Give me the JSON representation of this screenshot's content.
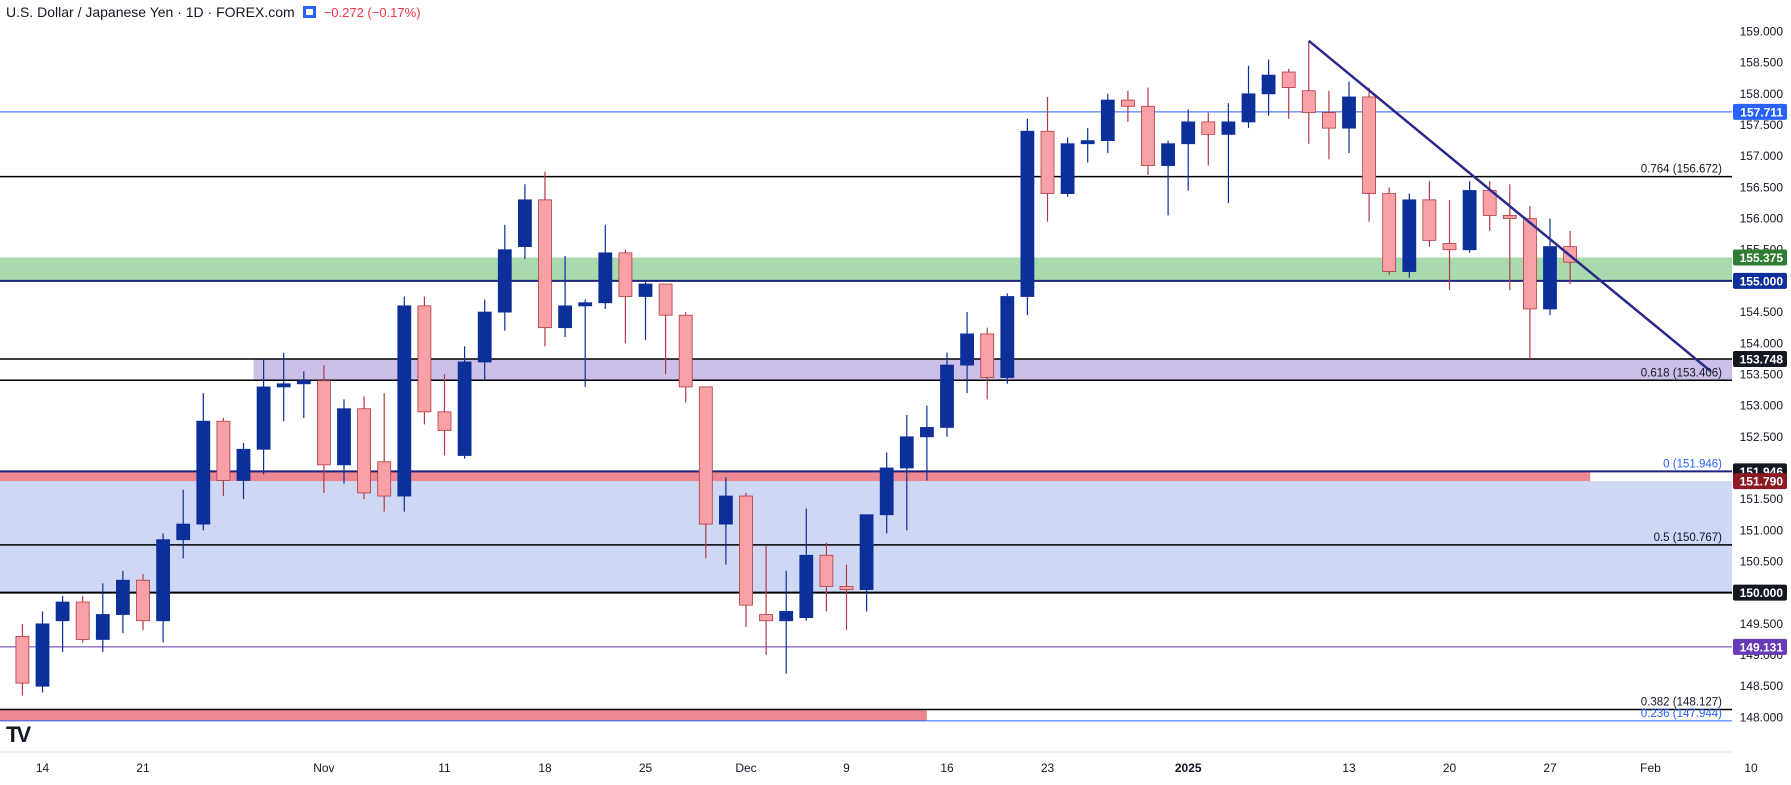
{
  "header": {
    "title": "U.S. Dollar / Japanese Yen · 1D · FOREX.com",
    "change": "−0.272 (−0.17%)",
    "change_color": "#f23645",
    "flag_icon": "blue-flag-icon"
  },
  "logo": {
    "text": "TV",
    "icon": "tradingview-logo-icon"
  },
  "colors": {
    "up_body": "#0d2f9a",
    "down_body": "#f7a1a6",
    "down_border": "#b23a43",
    "trendline": "#2a2a8c",
    "zone_green": "#9fd6a4",
    "zone_purple": "#c6b8e6",
    "zone_blue": "#c9d3f3",
    "zone_red": "#ec7b86"
  },
  "chart_data": {
    "type": "candlestick",
    "symbol": "USD/JPY",
    "timeframe": "1D",
    "ylim": [
      147.83,
      159.12
    ],
    "price_ticks": [
      "159.000",
      "158.500",
      "158.000",
      "157.500",
      "157.000",
      "156.500",
      "156.000",
      "155.500",
      "155.000",
      "154.500",
      "154.000",
      "153.500",
      "153.000",
      "152.500",
      "152.000",
      "151.500",
      "151.000",
      "150.500",
      "150.000",
      "149.500",
      "149.000",
      "148.500",
      "148.000"
    ],
    "time_ticks": [
      {
        "label": "14",
        "date": "2024-10-14"
      },
      {
        "label": "21",
        "date": "2024-10-21"
      },
      {
        "label": "Nov",
        "date": "2024-11-01"
      },
      {
        "label": "11",
        "date": "2024-11-11"
      },
      {
        "label": "18",
        "date": "2024-11-18"
      },
      {
        "label": "25",
        "date": "2024-11-25"
      },
      {
        "label": "Dec",
        "date": "2024-12-02"
      },
      {
        "label": "9",
        "date": "2024-12-09"
      },
      {
        "label": "16",
        "date": "2024-12-16"
      },
      {
        "label": "23",
        "date": "2024-12-23"
      },
      {
        "label": "2025",
        "date": "2025-01-01"
      },
      {
        "label": "13",
        "date": "2025-01-13"
      },
      {
        "label": "20",
        "date": "2025-01-20"
      },
      {
        "label": "27",
        "date": "2025-01-27"
      },
      {
        "label": "Feb",
        "date": "2025-02-03"
      },
      {
        "label": "10",
        "date": "2025-02-10"
      }
    ],
    "candles": [
      {
        "date": "2024-10-11",
        "open": 149.3,
        "high": 149.5,
        "low": 148.35,
        "close": 148.55
      },
      {
        "date": "2024-10-14",
        "open": 148.5,
        "high": 149.7,
        "low": 148.4,
        "close": 149.5
      },
      {
        "date": "2024-10-15",
        "open": 149.55,
        "high": 149.95,
        "low": 149.05,
        "close": 149.85
      },
      {
        "date": "2024-10-16",
        "open": 149.85,
        "high": 149.95,
        "low": 149.2,
        "close": 149.25
      },
      {
        "date": "2024-10-17",
        "open": 149.25,
        "high": 150.15,
        "low": 149.05,
        "close": 149.65
      },
      {
        "date": "2024-10-18",
        "open": 149.65,
        "high": 150.35,
        "low": 149.35,
        "close": 150.2
      },
      {
        "date": "2024-10-21",
        "open": 150.2,
        "high": 150.3,
        "low": 149.4,
        "close": 149.55
      },
      {
        "date": "2024-10-22",
        "open": 149.55,
        "high": 150.95,
        "low": 149.2,
        "close": 150.85
      },
      {
        "date": "2024-10-23",
        "open": 150.85,
        "high": 151.65,
        "low": 150.55,
        "close": 151.1
      },
      {
        "date": "2024-10-24",
        "open": 151.1,
        "high": 153.2,
        "low": 151.0,
        "close": 152.75
      },
      {
        "date": "2024-10-25",
        "open": 152.75,
        "high": 152.8,
        "low": 151.55,
        "close": 151.8
      },
      {
        "date": "2024-10-28",
        "open": 151.8,
        "high": 152.4,
        "low": 151.5,
        "close": 152.3
      },
      {
        "date": "2024-10-29",
        "open": 152.3,
        "high": 153.75,
        "low": 151.9,
        "close": 153.3
      },
      {
        "date": "2024-10-30",
        "open": 153.3,
        "high": 153.85,
        "low": 152.75,
        "close": 153.35
      },
      {
        "date": "2024-10-31",
        "open": 153.35,
        "high": 153.55,
        "low": 152.8,
        "close": 153.4
      },
      {
        "date": "2024-11-01",
        "open": 153.4,
        "high": 153.65,
        "low": 151.6,
        "close": 152.05
      },
      {
        "date": "2024-11-04",
        "open": 152.05,
        "high": 153.1,
        "low": 151.75,
        "close": 152.95
      },
      {
        "date": "2024-11-05",
        "open": 152.95,
        "high": 153.15,
        "low": 151.5,
        "close": 151.6
      },
      {
        "date": "2024-11-06",
        "open": 152.1,
        "high": 153.2,
        "low": 151.3,
        "close": 151.55
      },
      {
        "date": "2024-11-07",
        "open": 151.55,
        "high": 154.75,
        "low": 151.3,
        "close": 154.6
      },
      {
        "date": "2024-11-08",
        "open": 154.6,
        "high": 154.75,
        "low": 152.7,
        "close": 152.9
      },
      {
        "date": "2024-11-11",
        "open": 152.9,
        "high": 153.5,
        "low": 152.2,
        "close": 152.6
      },
      {
        "date": "2024-11-12",
        "open": 152.2,
        "high": 153.95,
        "low": 152.15,
        "close": 153.7
      },
      {
        "date": "2024-11-13",
        "open": 153.7,
        "high": 154.7,
        "low": 153.4,
        "close": 154.5
      },
      {
        "date": "2024-11-14",
        "open": 154.5,
        "high": 155.9,
        "low": 154.2,
        "close": 155.5
      },
      {
        "date": "2024-11-15",
        "open": 155.55,
        "high": 156.55,
        "low": 155.35,
        "close": 156.3
      },
      {
        "date": "2024-11-18",
        "open": 156.3,
        "high": 156.75,
        "low": 153.95,
        "close": 154.25
      },
      {
        "date": "2024-11-19",
        "open": 154.25,
        "high": 155.4,
        "low": 154.1,
        "close": 154.6
      },
      {
        "date": "2024-11-20",
        "open": 154.6,
        "high": 154.7,
        "low": 153.3,
        "close": 154.65
      },
      {
        "date": "2024-11-21",
        "open": 154.65,
        "high": 155.9,
        "low": 154.55,
        "close": 155.45
      },
      {
        "date": "2024-11-22",
        "open": 155.45,
        "high": 155.5,
        "low": 154.0,
        "close": 154.75
      },
      {
        "date": "2024-11-25",
        "open": 154.75,
        "high": 155.0,
        "low": 154.05,
        "close": 154.95
      },
      {
        "date": "2024-11-26",
        "open": 154.95,
        "high": 154.95,
        "low": 153.5,
        "close": 154.45
      },
      {
        "date": "2024-11-27",
        "open": 154.45,
        "high": 154.5,
        "low": 153.05,
        "close": 153.3
      },
      {
        "date": "2024-11-28",
        "open": 153.3,
        "high": 153.25,
        "low": 150.55,
        "close": 151.1
      },
      {
        "date": "2024-11-29",
        "open": 151.1,
        "high": 151.85,
        "low": 150.45,
        "close": 151.55
      },
      {
        "date": "2024-12-02",
        "open": 151.55,
        "high": 151.6,
        "low": 149.45,
        "close": 149.8
      },
      {
        "date": "2024-12-03",
        "open": 149.65,
        "high": 150.75,
        "low": 149.0,
        "close": 149.55
      },
      {
        "date": "2024-12-04",
        "open": 149.55,
        "high": 150.35,
        "low": 148.7,
        "close": 149.7
      },
      {
        "date": "2024-12-05",
        "open": 149.6,
        "high": 151.35,
        "low": 149.55,
        "close": 150.6
      },
      {
        "date": "2024-12-06",
        "open": 150.6,
        "high": 150.8,
        "low": 149.7,
        "close": 150.1
      },
      {
        "date": "2024-12-09",
        "open": 150.1,
        "high": 150.45,
        "low": 149.4,
        "close": 150.05
      },
      {
        "date": "2024-12-10",
        "open": 150.05,
        "high": 151.25,
        "low": 149.7,
        "close": 151.25
      },
      {
        "date": "2024-12-11",
        "open": 151.25,
        "high": 152.25,
        "low": 150.95,
        "close": 152.0
      },
      {
        "date": "2024-12-12",
        "open": 152.0,
        "high": 152.85,
        "low": 151.0,
        "close": 152.5
      },
      {
        "date": "2024-12-13",
        "open": 152.5,
        "high": 153.0,
        "low": 151.8,
        "close": 152.65
      },
      {
        "date": "2024-12-16",
        "open": 152.65,
        "high": 153.85,
        "low": 152.5,
        "close": 153.65
      },
      {
        "date": "2024-12-17",
        "open": 153.65,
        "high": 154.5,
        "low": 153.2,
        "close": 154.15
      },
      {
        "date": "2024-12-18",
        "open": 154.15,
        "high": 154.25,
        "low": 153.1,
        "close": 153.45
      },
      {
        "date": "2024-12-19",
        "open": 153.45,
        "high": 154.8,
        "low": 153.35,
        "close": 154.75
      },
      {
        "date": "2024-12-20",
        "open": 154.75,
        "high": 157.6,
        "low": 154.45,
        "close": 157.4
      },
      {
        "date": "2024-12-23",
        "open": 157.4,
        "high": 157.95,
        "low": 155.95,
        "close": 156.4
      },
      {
        "date": "2024-12-24",
        "open": 156.4,
        "high": 157.3,
        "low": 156.35,
        "close": 157.2
      },
      {
        "date": "2024-12-25",
        "open": 157.2,
        "high": 157.45,
        "low": 156.9,
        "close": 157.25
      },
      {
        "date": "2024-12-26",
        "open": 157.25,
        "high": 158.0,
        "low": 157.05,
        "close": 157.9
      },
      {
        "date": "2024-12-27",
        "open": 157.9,
        "high": 158.05,
        "low": 157.55,
        "close": 157.8
      },
      {
        "date": "2024-12-30",
        "open": 157.8,
        "high": 158.1,
        "low": 156.7,
        "close": 156.85
      },
      {
        "date": "2024-12-31",
        "open": 156.85,
        "high": 157.25,
        "low": 156.05,
        "close": 157.2
      },
      {
        "date": "2025-01-01",
        "open": 157.2,
        "high": 157.75,
        "low": 156.45,
        "close": 157.55
      },
      {
        "date": "2025-01-02",
        "open": 157.55,
        "high": 157.7,
        "low": 156.85,
        "close": 157.35
      },
      {
        "date": "2025-01-03",
        "open": 157.35,
        "high": 157.85,
        "low": 156.25,
        "close": 157.55
      },
      {
        "date": "2025-01-06",
        "open": 157.55,
        "high": 158.45,
        "low": 157.45,
        "close": 158.0
      },
      {
        "date": "2025-01-07",
        "open": 158.0,
        "high": 158.55,
        "low": 157.65,
        "close": 158.3
      },
      {
        "date": "2025-01-08",
        "open": 158.35,
        "high": 158.4,
        "low": 157.6,
        "close": 158.1
      },
      {
        "date": "2025-01-09",
        "open": 158.05,
        "high": 158.85,
        "low": 157.2,
        "close": 157.7
      },
      {
        "date": "2025-01-10",
        "open": 157.7,
        "high": 158.05,
        "low": 156.95,
        "close": 157.45
      },
      {
        "date": "2025-01-13",
        "open": 157.45,
        "high": 158.2,
        "low": 157.05,
        "close": 157.95
      },
      {
        "date": "2025-01-14",
        "open": 157.95,
        "high": 158.1,
        "low": 155.95,
        "close": 156.4
      },
      {
        "date": "2025-01-15",
        "open": 156.4,
        "high": 156.5,
        "low": 155.1,
        "close": 155.15
      },
      {
        "date": "2025-01-16",
        "open": 155.15,
        "high": 156.4,
        "low": 155.05,
        "close": 156.3
      },
      {
        "date": "2025-01-17",
        "open": 156.3,
        "high": 156.6,
        "low": 155.55,
        "close": 155.65
      },
      {
        "date": "2025-01-20",
        "open": 155.6,
        "high": 156.3,
        "low": 154.85,
        "close": 155.5
      },
      {
        "date": "2025-01-21",
        "open": 155.5,
        "high": 156.6,
        "low": 155.45,
        "close": 156.45
      },
      {
        "date": "2025-01-22",
        "open": 156.45,
        "high": 156.6,
        "low": 155.8,
        "close": 156.05
      },
      {
        "date": "2025-01-23",
        "open": 156.05,
        "high": 156.55,
        "low": 154.85,
        "close": 156.0
      },
      {
        "date": "2025-01-24",
        "open": 156.0,
        "high": 156.2,
        "low": 153.75,
        "close": 154.55
      },
      {
        "date": "2025-01-27",
        "open": 154.55,
        "high": 156.0,
        "low": 154.45,
        "close": 155.55
      },
      {
        "date": "2025-01-28",
        "open": 155.55,
        "high": 155.8,
        "low": 154.95,
        "close": 155.3
      }
    ],
    "horizontal_levels": [
      {
        "price": 157.711,
        "color": "#2962ff",
        "width": 1,
        "axis_label": "157.711",
        "label_bg": "#2962ff",
        "label_color": "#ffffff"
      },
      {
        "price": 156.672,
        "color": "#000000",
        "width": 1.5,
        "text": "0.764 (156.672)",
        "text_color": "#131722"
      },
      {
        "price": 155.375,
        "color": "#2e7d32",
        "width": 0,
        "axis_label": "155.375",
        "label_bg": "#2e7d32",
        "label_color": "#ffffff"
      },
      {
        "price": 155.0,
        "color": "#1a237e",
        "width": 2,
        "axis_label": "155.000",
        "label_bg": "#0d2f9a",
        "label_color": "#ffffff"
      },
      {
        "price": 153.748,
        "color": "#000000",
        "width": 1.5,
        "axis_label": "153.748",
        "label_bg": "#131722",
        "label_color": "#ffffff"
      },
      {
        "price": 153.406,
        "color": "#000000",
        "width": 1.5,
        "text": "0.618 (153.406)",
        "text_color": "#131722"
      },
      {
        "price": 151.946,
        "color": "#1a237e",
        "width": 2,
        "text": "0 (151.946)",
        "text_color": "#2962ff",
        "axis_label": "151.946",
        "label_bg": "#131722",
        "label_color": "#ffffff"
      },
      {
        "price": 151.79,
        "color": "#b71c1c",
        "width": 0,
        "axis_label": "151.790",
        "label_bg": "#8b1a22",
        "label_color": "#ffffff"
      },
      {
        "price": 150.767,
        "color": "#000000",
        "width": 1.5,
        "text": "0.5 (150.767)",
        "text_color": "#131722"
      },
      {
        "price": 150.0,
        "color": "#000000",
        "width": 2,
        "axis_label": "150.000",
        "label_bg": "#131722",
        "label_color": "#ffffff"
      },
      {
        "price": 149.131,
        "color": "#5e35b1",
        "width": 1,
        "axis_label": "149.131",
        "label_bg": "#673ab7",
        "label_color": "#ffffff"
      },
      {
        "price": 148.127,
        "color": "#000000",
        "width": 1.5,
        "text": "0.382 (148.127)",
        "text_color": "#131722"
      },
      {
        "price": 147.944,
        "color": "#2962ff",
        "width": 1,
        "text": "0.236 (147.944)",
        "text_color": "#2962ff"
      }
    ],
    "zones": [
      {
        "name": "green-zone",
        "from_price": 155.0,
        "to_price": 155.375,
        "color": "#9fd6a4",
        "start": "chart-left",
        "end": "chart-right"
      },
      {
        "name": "purple-zone",
        "from_price": 153.406,
        "to_price": 153.748,
        "color": "#c6b8e6",
        "start": "2024-10-29",
        "end": "chart-right"
      },
      {
        "name": "blue-zone",
        "from_price": 150.0,
        "to_price": 151.79,
        "color": "#c9d3f3",
        "start": "chart-left",
        "end": "chart-right"
      },
      {
        "name": "red-zone",
        "from_price": 151.79,
        "to_price": 151.946,
        "color": "#ec7b86",
        "start": "chart-left",
        "end": "2025-01-29"
      },
      {
        "name": "red-zone-bottom",
        "from_price": 147.944,
        "to_price": 148.127,
        "color": "#ec7b86",
        "start": "chart-left",
        "end": "2024-12-13"
      }
    ],
    "trendline": {
      "from": {
        "date": "2025-01-09",
        "price": 158.85
      },
      "to": {
        "date": "2025-02-06",
        "price": 153.55
      }
    }
  }
}
